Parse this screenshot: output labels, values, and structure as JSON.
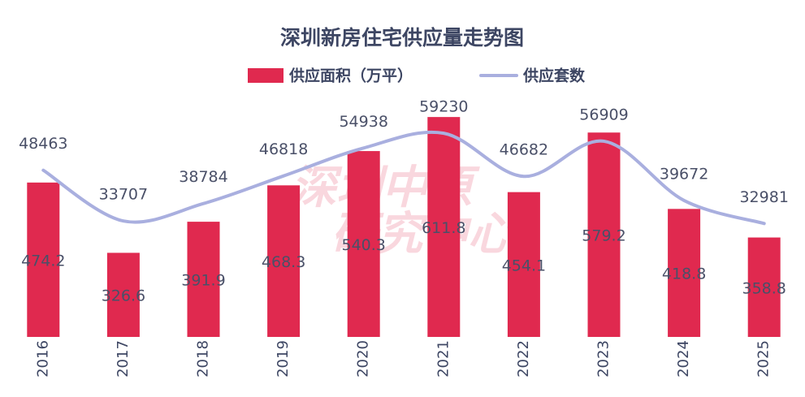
{
  "chart_data": {
    "type": "bar-line",
    "title": "深圳新房住宅供应量走势图",
    "watermark": [
      "深圳中原",
      "研究中心"
    ],
    "categories": [
      "2016",
      "2017",
      "2018",
      "2019",
      "2020",
      "2021",
      "2022",
      "2023",
      "2024",
      "2025"
    ],
    "series": [
      {
        "name": "供应面积（万平）",
        "color": "#e0294f",
        "type": "bar",
        "values": [
          474.2,
          326.6,
          391.9,
          468.3,
          540.3,
          611.8,
          454.1,
          579.2,
          418.8,
          358.8
        ]
      },
      {
        "name": "供应套数",
        "color": "#a9afdf",
        "type": "line",
        "axis": "y2",
        "values": [
          48463,
          33707,
          38784,
          46818,
          54938,
          59230,
          46682,
          56909,
          39672,
          32981
        ]
      }
    ],
    "ylim": [
      150,
      670
    ],
    "y2lim": [
      0,
      72000
    ],
    "legend": "top"
  }
}
